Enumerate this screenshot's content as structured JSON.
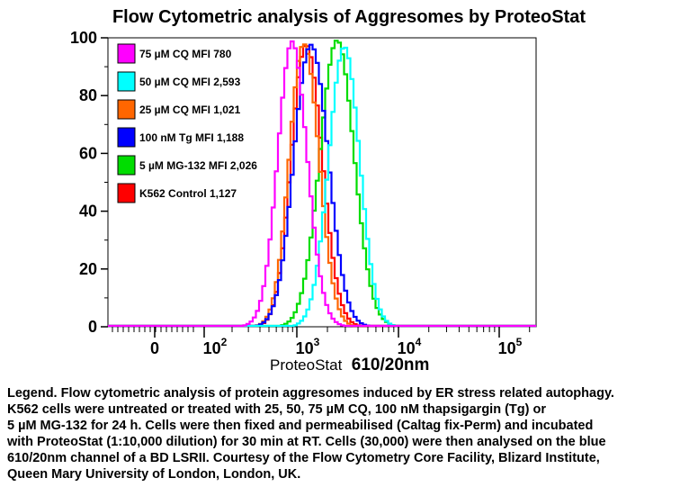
{
  "chart_data": {
    "type": "line",
    "title": "Flow Cytometric analysis of Aggresomes by ProteoStat",
    "xlabel_prefix": "ProteoStat",
    "xlabel_suffix": "610/20nm",
    "ylabel": "",
    "x_scale": "logicle",
    "ylim": [
      0,
      100
    ],
    "y_ticks": [
      "0",
      "20",
      "40",
      "60",
      "80",
      "100"
    ],
    "x_ticks": [
      {
        "base": "0",
        "exp": ""
      },
      {
        "base": "10",
        "exp": "2"
      },
      {
        "base": "10",
        "exp": "3"
      },
      {
        "base": "10",
        "exp": "4"
      },
      {
        "base": "10",
        "exp": "5"
      }
    ],
    "legend_position": "top-left",
    "series": [
      {
        "name": "75 µM CQ MFI 780",
        "color": "#ff00ff",
        "center_log": 2.93,
        "spread": 0.155
      },
      {
        "name": "50 µM CQ MFI 2,593",
        "color": "#00ffff",
        "center_log": 3.45,
        "spread": 0.15
      },
      {
        "name": "25 µM CQ MFI 1,021",
        "color": "#ff6600",
        "center_log": 3.05,
        "spread": 0.15
      },
      {
        "name": "100 nM Tg MFI 1,188",
        "color": "#0000ff",
        "center_log": 3.12,
        "spread": 0.17
      },
      {
        "name": "5 µM MG-132  MFI 2,026",
        "color": "#00dd00",
        "center_log": 3.38,
        "spread": 0.17
      },
      {
        "name": "K562 Control 1,127",
        "color": "#ff0000",
        "center_log": 3.08,
        "spread": 0.155
      }
    ]
  },
  "caption": [
    "Legend. Flow cytometric analysis of protein aggresomes induced by ER stress related autophagy.",
    "K562 cells were untreated or treated with 25, 50, 75 µM CQ, 100 nM thapsigargin (Tg) or",
    "5 µM MG-132 for 24 h. Cells were then fixed and permeabilised (Caltag fix-Perm) and incubated",
    "with ProteoStat (1:10,000 dilution) for 30 min at RT. Cells (30,000) were then analysed on the blue",
    "610/20nm channel of a BD LSRII. Courtesy of the Flow Cytometry Core Facility, Blizard Institute,",
    "Queen Mary University of London, London, UK."
  ]
}
